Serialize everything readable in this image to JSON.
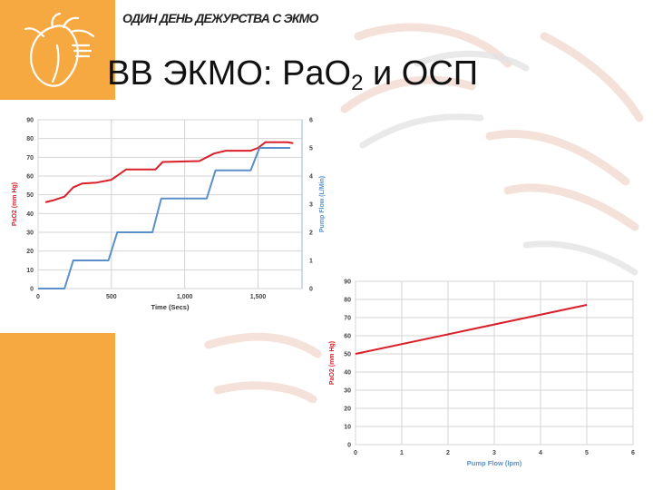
{
  "header": {
    "text": "ОДИН ДЕНЬ ДЕЖУРСТВА С ЭКМО"
  },
  "title": {
    "main": "ВВ ЭКМО: PaO",
    "sub": "2",
    "tail": " и ОСП"
  },
  "colors": {
    "accent": "#f7a941",
    "pao2": "#d9202a",
    "flow": "#5b8fc9",
    "grid": "#d4d4d4"
  },
  "chart_data": [
    {
      "type": "line",
      "title": "",
      "xlabel": "Time (Secs)",
      "ylabel": "PaO2 (mm Hg)",
      "y2label": "Pump Flow (L/Min)",
      "xlim": [
        0,
        1800
      ],
      "ylim": [
        0,
        90
      ],
      "y2lim": [
        0,
        6
      ],
      "x_ticks": [
        0,
        500,
        1000,
        1500
      ],
      "x_tick_labels": [
        "0",
        "500",
        "1,000",
        "1,500"
      ],
      "y_ticks": [
        0,
        10,
        20,
        30,
        40,
        50,
        60,
        70,
        80,
        90
      ],
      "y2_ticks": [
        0,
        1,
        2,
        3,
        4,
        5,
        6
      ],
      "grid": true,
      "series": [
        {
          "axis": "left",
          "color": "#d9202a",
          "x": [
            50,
            100,
            180,
            240,
            300,
            400,
            500,
            600,
            800,
            850,
            1100,
            1200,
            1280,
            1450,
            1500,
            1550,
            1700,
            1740
          ],
          "y": [
            46,
            47,
            49,
            54,
            56,
            56.5,
            58,
            63.5,
            63.5,
            67.5,
            68,
            72,
            73.5,
            73.5,
            75,
            78,
            78,
            77.5
          ]
        },
        {
          "axis": "right",
          "color": "#5b8fc9",
          "x": [
            0,
            180,
            240,
            480,
            540,
            780,
            840,
            1150,
            1210,
            1450,
            1510,
            1720
          ],
          "y": [
            0,
            0,
            1,
            1,
            2,
            2,
            3.2,
            3.2,
            4.2,
            4.2,
            5,
            5
          ]
        }
      ]
    },
    {
      "type": "line",
      "title": "",
      "xlabel": "Pump Flow (lpm)",
      "ylabel": "PaO2 (mm Hg)",
      "xlim": [
        0,
        6
      ],
      "ylim": [
        0,
        90
      ],
      "x_ticks": [
        0,
        1,
        2,
        3,
        4,
        5,
        6
      ],
      "y_ticks": [
        0,
        10,
        20,
        30,
        40,
        50,
        60,
        70,
        80,
        90
      ],
      "grid": true,
      "series": [
        {
          "color": "#d9202a",
          "x": [
            0,
            5
          ],
          "y": [
            50,
            77
          ]
        }
      ]
    }
  ]
}
